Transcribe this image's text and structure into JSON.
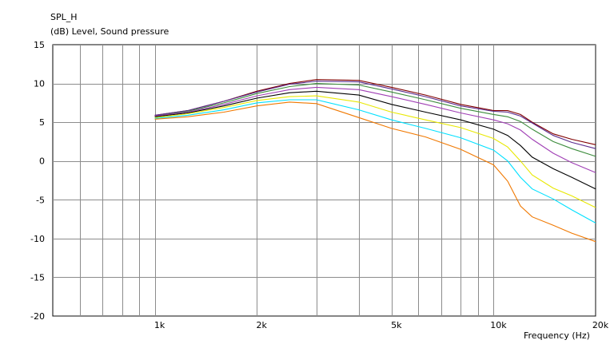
{
  "chart_data": {
    "type": "line",
    "title": "SPL_H",
    "ylabel": "(dB)  Level, Sound pressure",
    "xlabel": "Frequency  (Hz)",
    "x_scale": "log",
    "xlim": [
      500,
      20000
    ],
    "ylim": [
      -20,
      15
    ],
    "grid": true,
    "x_gridlines": [
      600,
      700,
      800,
      900,
      1000,
      2000,
      3000,
      4000,
      5000,
      6000,
      7000,
      8000,
      9000,
      10000,
      20000
    ],
    "x_ticks": [
      {
        "value": 1000,
        "label": "1k"
      },
      {
        "value": 2000,
        "label": "2k"
      },
      {
        "value": 5000,
        "label": "5k"
      },
      {
        "value": 10000,
        "label": "10k"
      },
      {
        "value": 20000,
        "label": "20k"
      }
    ],
    "y_ticks": [
      {
        "value": 15,
        "label": "15"
      },
      {
        "value": 10,
        "label": "10"
      },
      {
        "value": 5,
        "label": "5"
      },
      {
        "value": 0,
        "label": "0"
      },
      {
        "value": -5,
        "label": "-5"
      },
      {
        "value": -10,
        "label": "-10"
      },
      {
        "value": -15,
        "label": "-15"
      },
      {
        "value": -20,
        "label": "-20"
      }
    ],
    "x": [
      1000,
      1250,
      1600,
      2000,
      2500,
      3000,
      4000,
      5000,
      6300,
      8000,
      10000,
      11000,
      12000,
      13000,
      15000,
      17000,
      20000
    ],
    "series": [
      {
        "color": "#800000",
        "values": [
          5.9,
          6.5,
          7.7,
          9.0,
          10.0,
          10.5,
          10.4,
          9.5,
          8.5,
          7.3,
          6.5,
          6.5,
          6.0,
          5.0,
          3.5,
          2.8,
          2.1
        ]
      },
      {
        "color": "#5a2d8f",
        "values": [
          5.9,
          6.5,
          7.7,
          8.9,
          9.9,
          10.3,
          10.2,
          9.3,
          8.3,
          7.1,
          6.4,
          6.3,
          5.8,
          4.9,
          3.3,
          2.4,
          1.6
        ]
      },
      {
        "color": "#3c8c3c",
        "values": [
          5.8,
          6.4,
          7.5,
          8.7,
          9.6,
          10.0,
          9.8,
          8.9,
          7.9,
          6.8,
          6.0,
          5.7,
          5.1,
          4.1,
          2.5,
          1.6,
          0.6
        ]
      },
      {
        "color": "#a03fb5",
        "values": [
          5.8,
          6.3,
          7.3,
          8.4,
          9.2,
          9.5,
          9.2,
          8.3,
          7.3,
          6.2,
          5.3,
          4.8,
          4.0,
          2.8,
          1.0,
          -0.2,
          -1.5
        ]
      },
      {
        "color": "#000000",
        "values": [
          5.7,
          6.2,
          7.1,
          8.1,
          8.8,
          9.0,
          8.5,
          7.3,
          6.3,
          5.3,
          4.1,
          3.3,
          2.0,
          0.5,
          -1.0,
          -2.1,
          -3.6
        ]
      },
      {
        "color": "#e8e800",
        "values": [
          5.6,
          6.1,
          6.9,
          7.8,
          8.3,
          8.4,
          7.6,
          6.3,
          5.3,
          4.3,
          2.9,
          1.8,
          0.0,
          -1.8,
          -3.5,
          -4.5,
          -6.0
        ]
      },
      {
        "color": "#00e0ff",
        "values": [
          5.5,
          5.9,
          6.6,
          7.5,
          7.9,
          7.9,
          6.6,
          5.3,
          4.2,
          3.0,
          1.4,
          0.0,
          -2.1,
          -3.6,
          -4.9,
          -6.3,
          -8.0
        ]
      },
      {
        "color": "#f07800",
        "values": [
          5.4,
          5.7,
          6.3,
          7.1,
          7.6,
          7.4,
          5.6,
          4.2,
          3.1,
          1.5,
          -0.5,
          -2.6,
          -5.8,
          -7.2,
          -8.3,
          -9.3,
          -10.4
        ]
      }
    ]
  }
}
